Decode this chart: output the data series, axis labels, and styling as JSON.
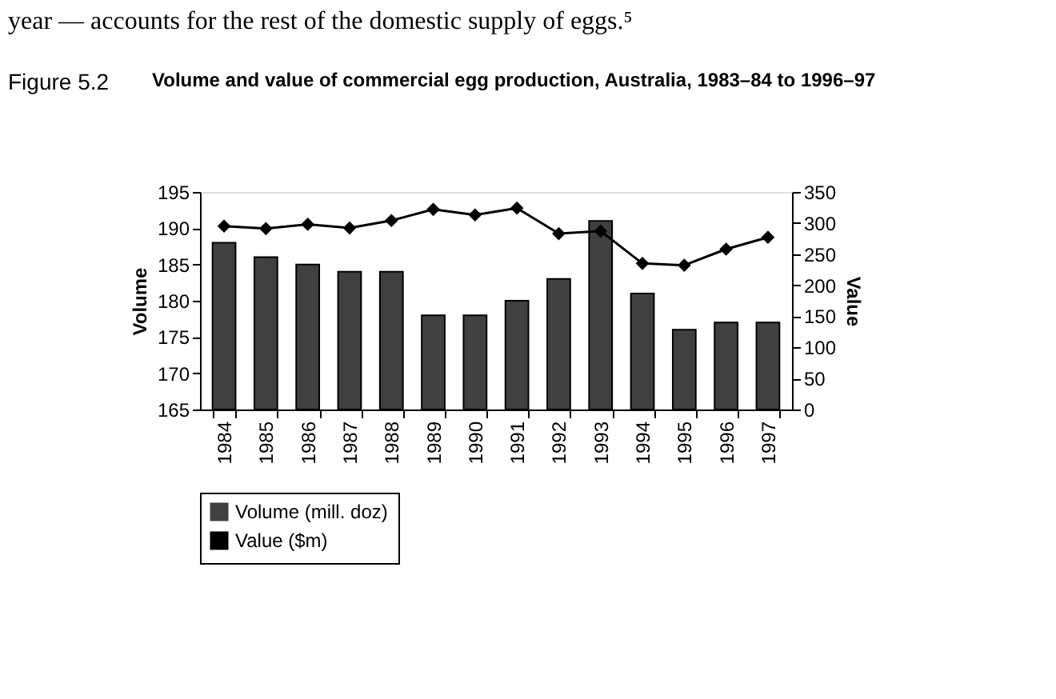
{
  "chart_data": {
    "type": "bar",
    "title": "Volume and value of commercial egg production, Australia, 1983–84 to 1996–97",
    "annotations": [
      "year — accounts for the rest of the domestic supply of eggs.⁵",
      "Figure 5.2"
    ],
    "categories": [
      "1984",
      "1985",
      "1986",
      "1987",
      "1988",
      "1989",
      "1990",
      "1991",
      "1992",
      "1993",
      "1994",
      "1995",
      "1996",
      "1997"
    ],
    "ylabel": "Volume",
    "y2label": "Value",
    "ylim": [
      165,
      195
    ],
    "yticks": [
      165,
      170,
      175,
      180,
      185,
      190,
      195
    ],
    "y2lim": [
      0,
      350
    ],
    "y2ticks": [
      0,
      50,
      100,
      150,
      200,
      250,
      300,
      350
    ],
    "series": [
      {
        "name": "Volume (mill. doz)",
        "color": "#404040",
        "values": [
          188,
          186,
          185,
          184,
          184,
          178,
          178,
          180,
          183,
          191,
          181,
          176,
          177,
          177
        ]
      },
      {
        "name": "Value ($m)",
        "type": "line",
        "axis": "y2",
        "color": "#000000",
        "marker": "diamond",
        "values": [
          295,
          291,
          298,
          292,
          304,
          322,
          313,
          324,
          283,
          287,
          235,
          232,
          258,
          277
        ]
      }
    ],
    "legend": "bottom",
    "grid": false
  }
}
